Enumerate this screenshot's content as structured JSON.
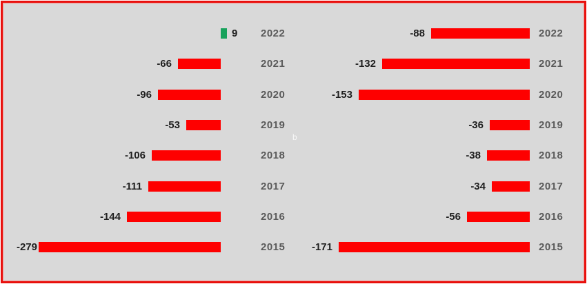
{
  "watermark": "b",
  "colors": {
    "background": "#d9d9d9",
    "frame_border": "#e8100d",
    "frame_border_inner": "#f4928f",
    "negative_bar": "#fe0000",
    "positive_bar": "#18a25c",
    "value_label": "#1f1f1f",
    "year_label": "#5a5a5a",
    "watermark": "#ffffff"
  },
  "chart_data": [
    {
      "type": "bar",
      "orientation": "horizontal",
      "position": "left",
      "title": "",
      "categories": [
        "2022",
        "2021",
        "2020",
        "2019",
        "2018",
        "2017",
        "2016",
        "2015"
      ],
      "values": [
        9,
        -66,
        -96,
        -53,
        -106,
        -111,
        -144,
        -279
      ],
      "value_labels_shown": true,
      "axis_shown": false,
      "legend": "none",
      "bar_color_rule": "negative red, positive green"
    },
    {
      "type": "bar",
      "orientation": "horizontal",
      "position": "right",
      "title": "",
      "categories": [
        "2022",
        "2021",
        "2020",
        "2019",
        "2018",
        "2017",
        "2016",
        "2015"
      ],
      "values": [
        -88,
        -132,
        -153,
        -36,
        -38,
        -34,
        -56,
        -171
      ],
      "value_labels_shown": true,
      "axis_shown": false,
      "legend": "none",
      "bar_color_rule": "negative red, positive green"
    }
  ]
}
